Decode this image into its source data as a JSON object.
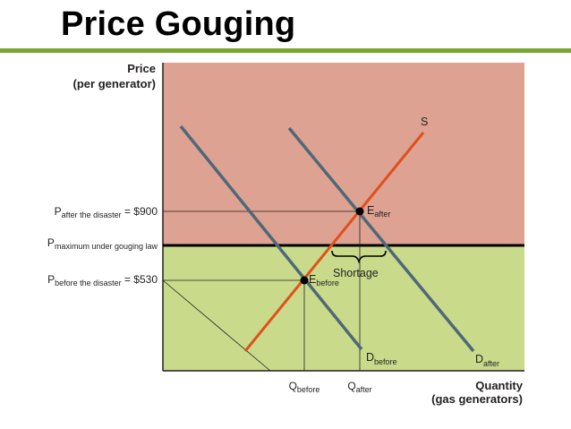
{
  "slide": {
    "title": "Price Gouging",
    "accent_color": "#7aa630"
  },
  "diagram": {
    "y_axis": {
      "label_line1": "Price",
      "label_line2": "(per generator)"
    },
    "x_axis": {
      "label_line1": "Quantity",
      "label_line2": "(gas generators)"
    },
    "regions": {
      "above_cap_color": "#dda292",
      "below_cap_color": "#c9db8a"
    },
    "price_labels": {
      "after": {
        "main": "P",
        "sub": "after the disaster",
        "value": " = $900"
      },
      "cap": {
        "main": "P",
        "sub": "maximum under gouging law"
      },
      "before": {
        "main": "P",
        "sub": "before the disaster",
        "value": " = $530"
      }
    },
    "quantity_labels": {
      "before": {
        "main": "Q",
        "sub": "before"
      },
      "after": {
        "main": "Q",
        "sub": "after"
      }
    },
    "curves": {
      "supply": {
        "label": "S",
        "color": "#e0501c"
      },
      "demand_before": {
        "main": "D",
        "sub": "before",
        "color": "#4f6877"
      },
      "demand_after": {
        "main": "D",
        "sub": "after",
        "color": "#4f6877"
      }
    },
    "equilibria": {
      "after": {
        "main": "E",
        "sub": "after"
      },
      "before": {
        "main": "E",
        "sub": "before"
      }
    },
    "shortage_label": "Shortage"
  }
}
